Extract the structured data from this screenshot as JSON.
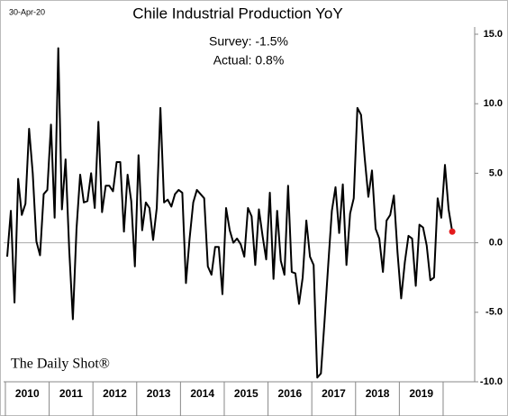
{
  "chart_data": {
    "type": "line",
    "title": "Chile Industrial Production YoY",
    "date_label": "30-Apr-20",
    "annotations": [
      "Survey: -1.5%",
      "Actual:  0.8%"
    ],
    "watermark": "The Daily Shot®",
    "categories": [
      "2010",
      null,
      null,
      null,
      null,
      null,
      null,
      null,
      null,
      null,
      null,
      null,
      "2011",
      null,
      null,
      null,
      null,
      null,
      null,
      null,
      null,
      null,
      null,
      null,
      "2012",
      null,
      null,
      null,
      null,
      null,
      null,
      null,
      null,
      null,
      null,
      null,
      "2013",
      null,
      null,
      null,
      null,
      null,
      null,
      null,
      null,
      null,
      null,
      null,
      "2014",
      null,
      null,
      null,
      null,
      null,
      null,
      null,
      null,
      null,
      null,
      null,
      "2015",
      null,
      null,
      null,
      null,
      null,
      null,
      null,
      null,
      null,
      null,
      null,
      "2016",
      null,
      null,
      null,
      null,
      null,
      null,
      null,
      null,
      null,
      null,
      null,
      "2017",
      null,
      null,
      null,
      null,
      null,
      null,
      null,
      null,
      null,
      null,
      null,
      "2018",
      null,
      null,
      null,
      null,
      null,
      null,
      null,
      null,
      null,
      null,
      null,
      "2019",
      null,
      null,
      null,
      null,
      null,
      null,
      null,
      null,
      null,
      null,
      null,
      null,
      null,
      null
    ],
    "series": [
      {
        "name": "Chile Industrial Production YoY",
        "color": "#000000",
        "highlight_color": "#e31a1c",
        "values": [
          -1.0,
          2.3,
          -4.3,
          4.6,
          2.0,
          2.8,
          8.2,
          5.0,
          0.1,
          -0.9,
          3.5,
          3.8,
          8.5,
          1.8,
          14.0,
          2.4,
          6.0,
          -0.5,
          -5.5,
          1.0,
          4.9,
          2.9,
          3.0,
          5.0,
          2.5,
          8.7,
          2.2,
          4.1,
          4.1,
          3.7,
          5.8,
          5.8,
          0.8,
          4.9,
          3.0,
          -1.7,
          6.3,
          0.9,
          2.9,
          2.5,
          0.2,
          2.5,
          9.7,
          2.9,
          3.1,
          2.6,
          3.5,
          3.8,
          3.6,
          -2.9,
          0.3,
          2.9,
          3.8,
          3.5,
          3.2,
          -1.7,
          -2.3,
          -0.3,
          -0.3,
          -3.7,
          2.5,
          0.9,
          0.0,
          0.3,
          -0.1,
          -1.0,
          2.5,
          1.9,
          -1.6,
          2.4,
          0.5,
          -1.2,
          3.6,
          -2.6,
          2.3,
          -1.3,
          -2.3,
          4.1,
          -2.1,
          -2.2,
          -4.4,
          -2.5,
          1.6,
          -1.0,
          -1.6,
          -9.7,
          -9.4,
          -5.6,
          -1.6,
          2.3,
          4.0,
          0.7,
          4.2,
          -1.6,
          2.1,
          3.2,
          9.7,
          9.2,
          6.1,
          3.3,
          5.2,
          1.0,
          0.3,
          -2.1,
          1.6,
          2.0,
          3.4,
          -0.7,
          -4.0,
          -1.4,
          0.5,
          0.3,
          -3.1,
          1.3,
          1.1,
          -0.2,
          -2.7,
          -2.5,
          3.2,
          1.8,
          5.6,
          2.4,
          0.8
        ]
      }
    ],
    "ylim": [
      -10,
      15
    ],
    "yticks": [
      {
        "value": -10,
        "label": "-10.0"
      },
      {
        "value": -5,
        "label": "-5.0"
      },
      {
        "value": 0,
        "label": "0.0"
      },
      {
        "value": 5,
        "label": "5.0"
      },
      {
        "value": 10,
        "label": "10.0"
      },
      {
        "value": 15,
        "label": "15.0"
      }
    ],
    "zero_line": true
  }
}
